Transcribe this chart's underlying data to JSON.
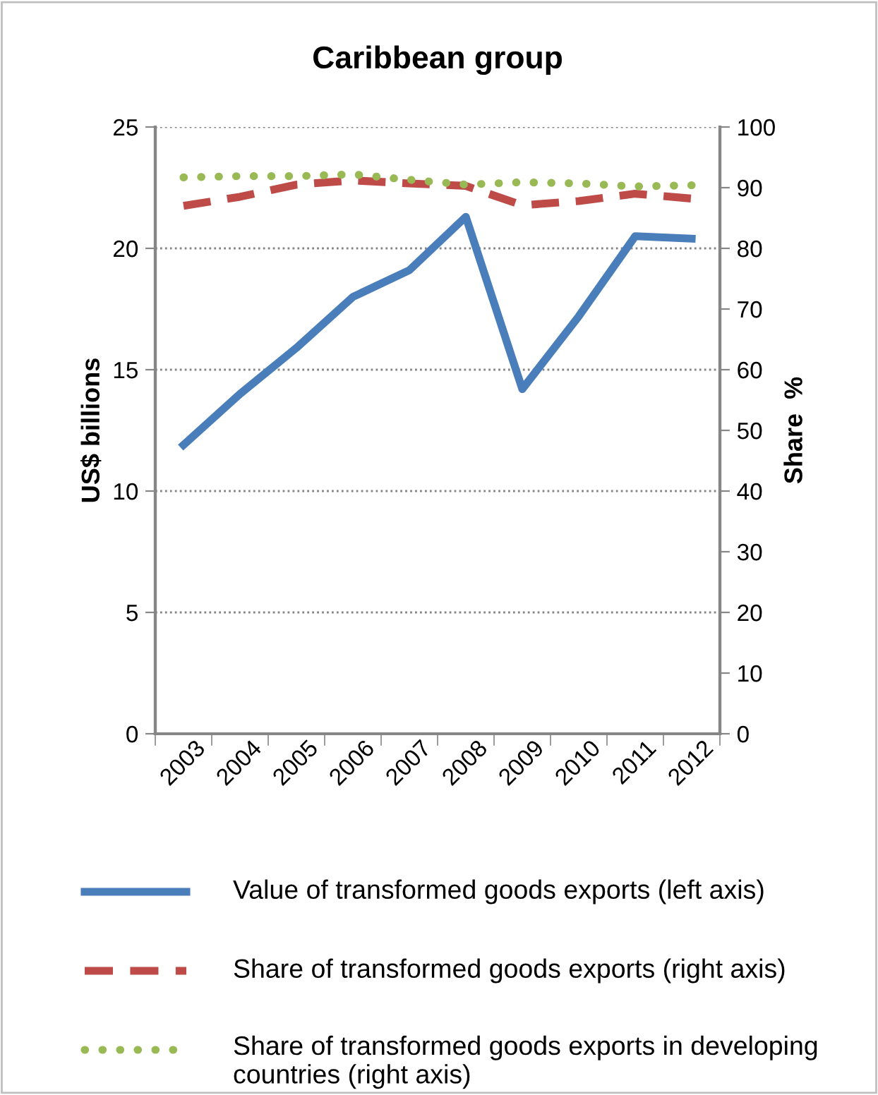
{
  "chart_data": {
    "type": "line",
    "title": "Caribbean group",
    "ylabel": "US$ billions",
    "y2label": "Share  %",
    "categories": [
      "2003",
      "2004",
      "2005",
      "2006",
      "2007",
      "2008",
      "2009",
      "2010",
      "2011",
      "2012"
    ],
    "series": [
      {
        "name": "Value of transformed goods exports (left axis)",
        "color": "#4a7ebb",
        "line_style": "solid",
        "values": [
          11.9,
          14.0,
          15.9,
          18.0,
          19.1,
          21.3,
          14.2,
          17.2,
          20.5,
          20.4
        ]
      },
      {
        "name": "Share of transformed goods exports (right axis)",
        "color": "#be4b48",
        "line_style": "dashed",
        "axis": "y2",
        "values": [
          87.0,
          88.5,
          90.5,
          91.2,
          90.7,
          90.3,
          87.1,
          87.8,
          89.0,
          88.2
        ]
      },
      {
        "name": "Share of transformed goods exports in developing countries (right axis)",
        "color": "#98b954",
        "line_style": "dotted",
        "axis": "y2",
        "values": [
          91.7,
          91.9,
          91.9,
          92.2,
          91.3,
          90.5,
          90.9,
          90.7,
          90.2,
          90.4
        ]
      }
    ],
    "ylim": [
      0,
      25
    ],
    "yticks": [
      0,
      5,
      10,
      15,
      20,
      25
    ],
    "y2lim": [
      0,
      100
    ],
    "y2ticks": [
      0,
      10,
      20,
      30,
      40,
      50,
      60,
      70,
      80,
      90,
      100
    ],
    "grid": "y",
    "legend": "bottom",
    "marker": "none"
  }
}
